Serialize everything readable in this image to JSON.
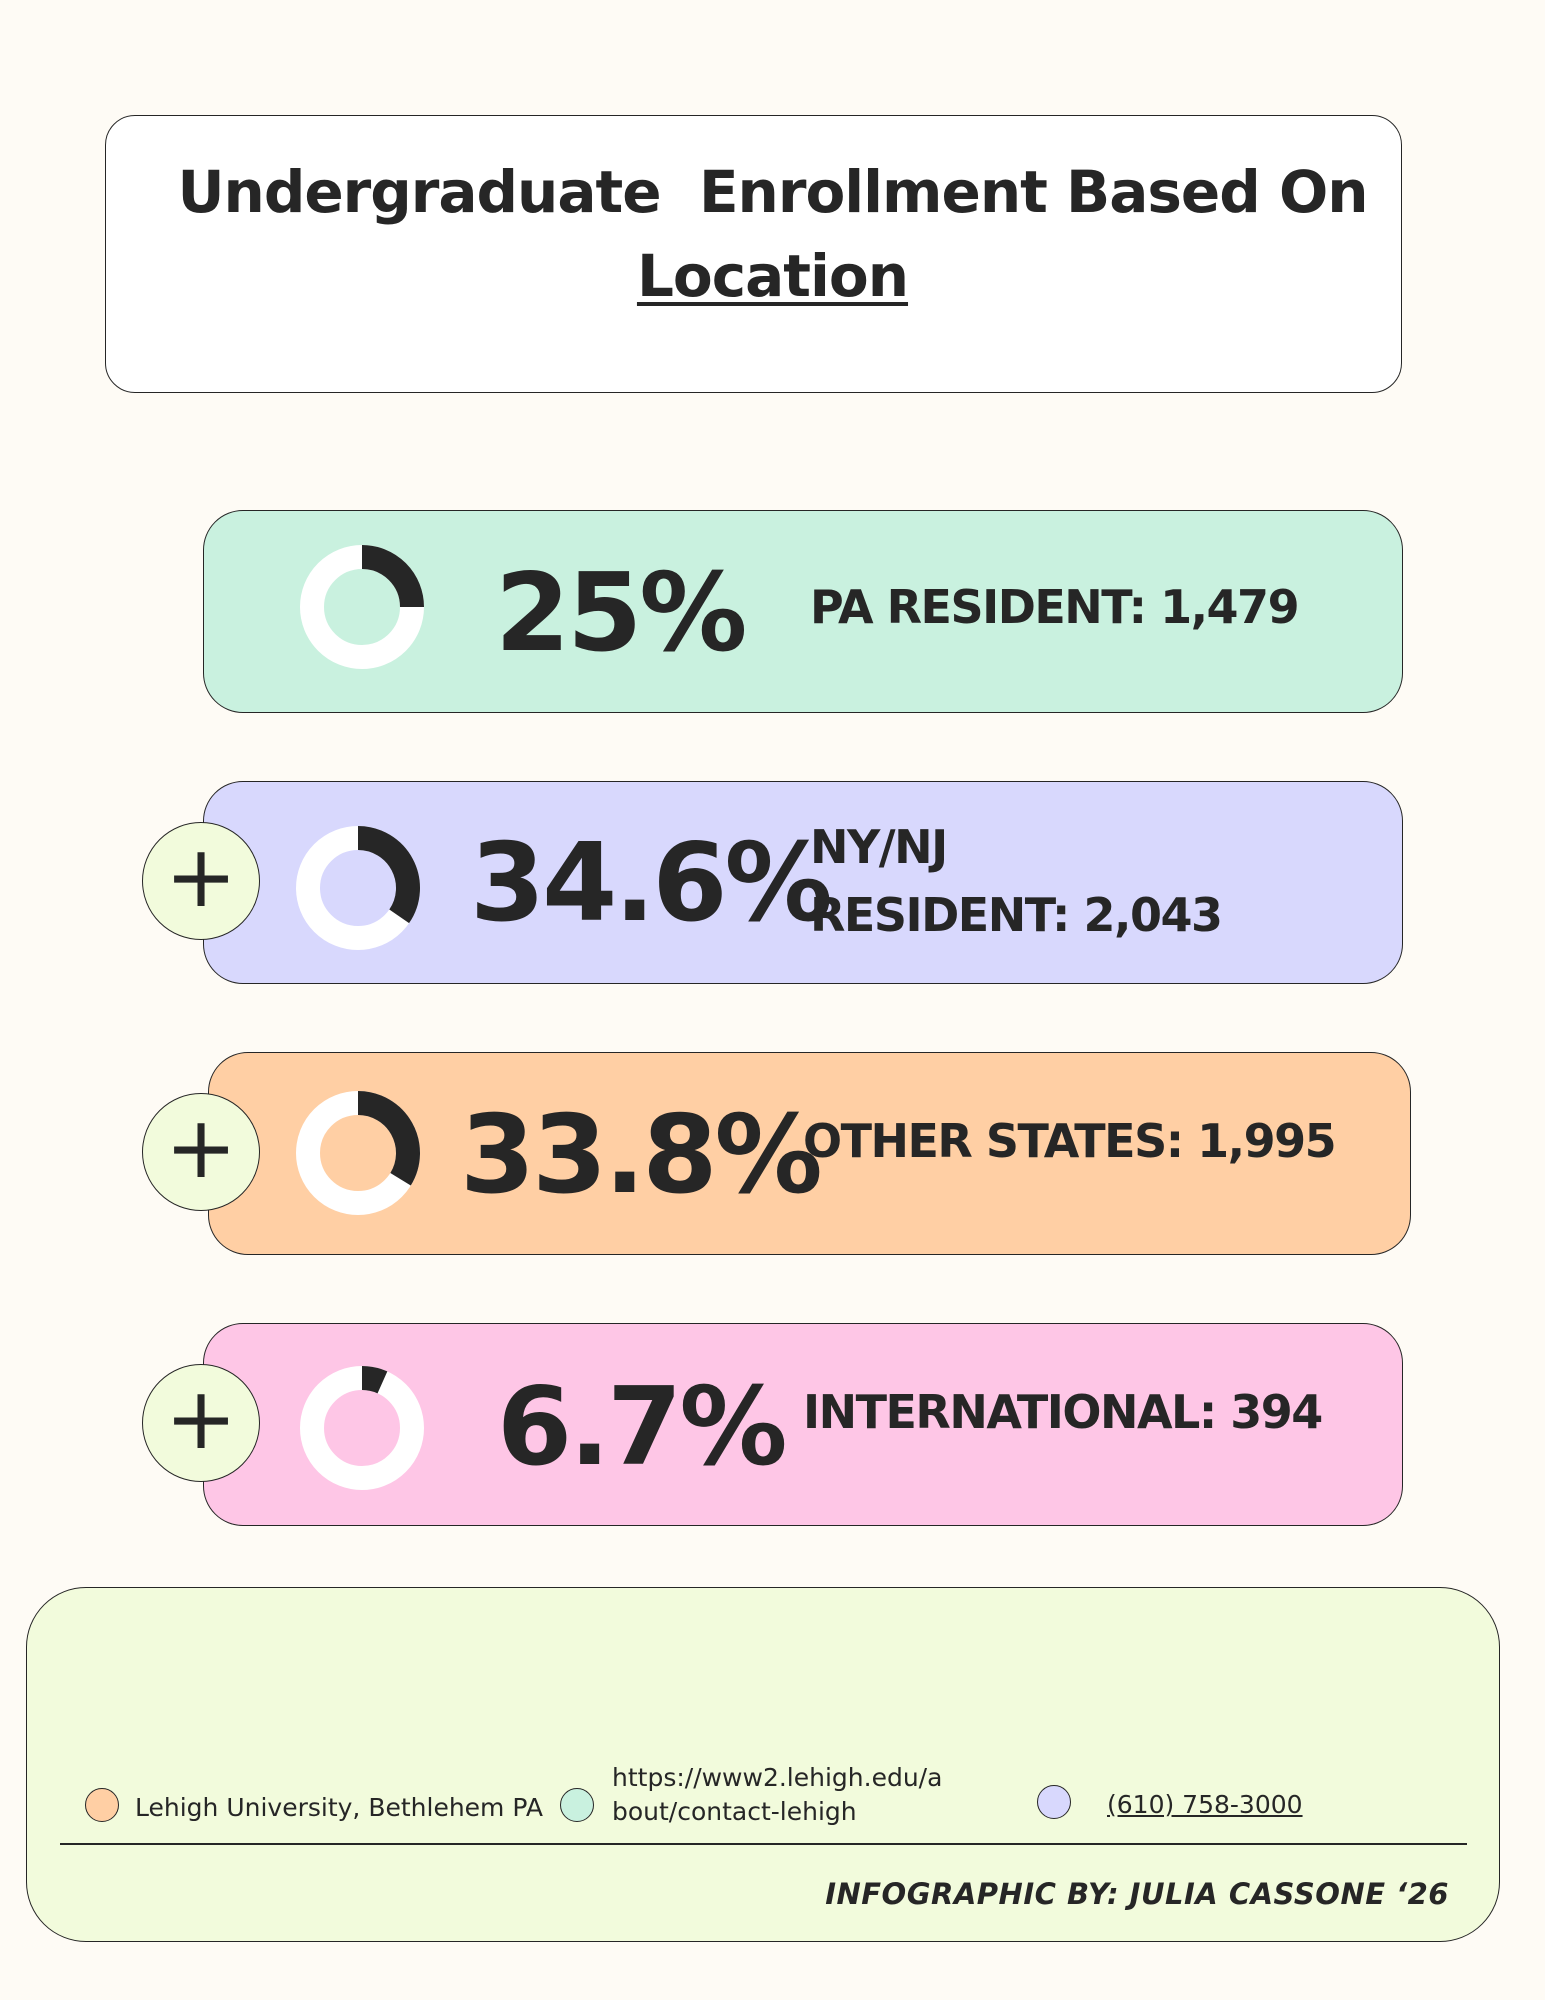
{
  "title": {
    "line1": "Undergraduate  Enrollment Based On",
    "line2": "Location"
  },
  "stats": [
    {
      "percent": "25%",
      "fraction": 0.25,
      "label": "PA RESIDENT: 1,479",
      "color": "#c9f1df"
    },
    {
      "percent": "34.6%",
      "fraction": 0.346,
      "label_line1": "NY/NJ",
      "label_line2": "RESIDENT: 2,043",
      "color": "#d8d8fd"
    },
    {
      "percent": "33.8%",
      "fraction": 0.338,
      "label": "OTHER STATES: 1,995",
      "color": "#ffcfa4"
    },
    {
      "percent": "6.7%",
      "fraction": 0.067,
      "label": "INTERNATIONAL: 394",
      "color": "#fec6e6"
    }
  ],
  "footer": {
    "location": "Lehigh University, Bethlehem PA",
    "url_line1": "https://www2.lehigh.edu/a",
    "url_line2": "bout/contact-lehigh",
    "phone": "(610) 758-3000",
    "credit": "INFOGRAPHIC BY: JULIA CASSONE ‘26",
    "dot_colors": [
      "#ffcfa4",
      "#c9f1df",
      "#d8d8fd"
    ]
  },
  "colors": {
    "plus_button": "#f2fbdc",
    "footer_bg": "#f2fbdc",
    "page_bg": "#fefbf5",
    "dark": "#262626"
  }
}
